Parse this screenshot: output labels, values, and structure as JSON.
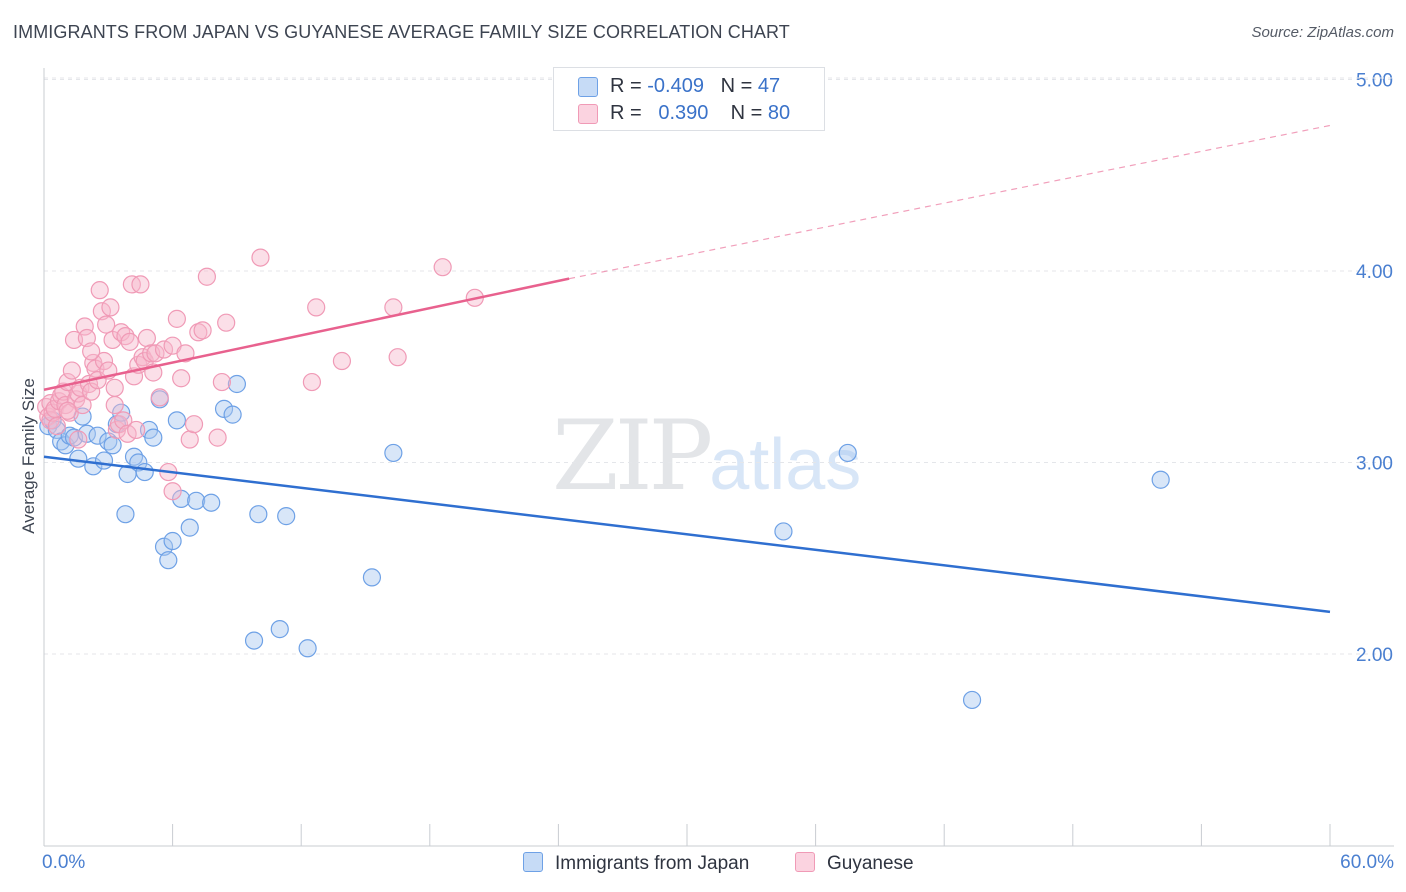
{
  "title": "IMMIGRANTS FROM JAPAN VS GUYANESE AVERAGE FAMILY SIZE CORRELATION CHART",
  "source": "Source: ZipAtlas.com",
  "watermark": {
    "zip": "ZIP",
    "atlas": "atlas"
  },
  "legend_top": {
    "rows": [
      {
        "r_label": "R =",
        "r_value": "-0.409",
        "n_label": "N =",
        "n_value": "47",
        "color": "#a9c8f0"
      },
      {
        "r_label": "R =",
        "r_value": "0.390",
        "n_label": "N =",
        "n_value": "80",
        "color": "#f6b8cc"
      }
    ]
  },
  "chart_data": {
    "type": "scatter",
    "title": "IMMIGRANTS FROM JAPAN VS GUYANESE AVERAGE FAMILY SIZE CORRELATION CHART",
    "xlabel": "",
    "ylabel": "Average Family Size",
    "xlim": [
      0,
      60
    ],
    "ylim": [
      1.0,
      5.2
    ],
    "x_tick_labels": [
      "0.0%",
      "60.0%"
    ],
    "y_ticks": [
      2.0,
      3.0,
      4.0,
      5.0
    ],
    "y_tick_labels": [
      "2.00",
      "3.00",
      "4.00",
      "5.00"
    ],
    "grid": true,
    "legend_position": "bottom",
    "series": [
      {
        "name": "Immigrants from Japan",
        "color": "#6ea1e6",
        "trend_color": "#2f6fd0",
        "trend": {
          "x": [
            0,
            60
          ],
          "y": [
            3.03,
            2.22
          ]
        },
        "points": [
          [
            0.2,
            3.19
          ],
          [
            0.4,
            3.22
          ],
          [
            0.6,
            3.17
          ],
          [
            0.8,
            3.11
          ],
          [
            1.0,
            3.09
          ],
          [
            1.2,
            3.14
          ],
          [
            1.4,
            3.13
          ],
          [
            1.6,
            3.02
          ],
          [
            1.8,
            3.24
          ],
          [
            2.0,
            3.15
          ],
          [
            2.3,
            2.98
          ],
          [
            2.5,
            3.14
          ],
          [
            2.8,
            3.01
          ],
          [
            3.0,
            3.11
          ],
          [
            3.2,
            3.09
          ],
          [
            3.4,
            3.2
          ],
          [
            3.6,
            3.26
          ],
          [
            3.8,
            2.73
          ],
          [
            3.9,
            2.94
          ],
          [
            4.2,
            3.03
          ],
          [
            4.4,
            3.0
          ],
          [
            4.7,
            2.95
          ],
          [
            4.9,
            3.17
          ],
          [
            5.1,
            3.13
          ],
          [
            5.4,
            3.33
          ],
          [
            5.6,
            2.56
          ],
          [
            5.8,
            2.49
          ],
          [
            6.0,
            2.59
          ],
          [
            6.2,
            3.22
          ],
          [
            6.4,
            2.81
          ],
          [
            6.8,
            2.66
          ],
          [
            7.1,
            2.8
          ],
          [
            7.8,
            2.79
          ],
          [
            8.4,
            3.28
          ],
          [
            9.0,
            3.41
          ],
          [
            8.8,
            3.25
          ],
          [
            9.8,
            2.07
          ],
          [
            10.0,
            2.73
          ],
          [
            11.0,
            2.13
          ],
          [
            11.3,
            2.72
          ],
          [
            12.3,
            2.03
          ],
          [
            15.3,
            2.4
          ],
          [
            16.3,
            3.05
          ],
          [
            34.5,
            2.64
          ],
          [
            37.5,
            3.05
          ],
          [
            43.3,
            1.76
          ],
          [
            52.1,
            2.91
          ]
        ]
      },
      {
        "name": "Guyanese",
        "color": "#f09ab6",
        "trend_color": "#e8618e",
        "trend": {
          "x": [
            0,
            24.5
          ],
          "y": [
            3.38,
            3.96
          ]
        },
        "trend_dashed": {
          "x": [
            24.5,
            60
          ],
          "y": [
            3.96,
            4.76
          ]
        },
        "points": [
          [
            0.1,
            3.29
          ],
          [
            0.2,
            3.24
          ],
          [
            0.3,
            3.22
          ],
          [
            0.3,
            3.31
          ],
          [
            0.4,
            3.26
          ],
          [
            0.5,
            3.28
          ],
          [
            0.6,
            3.19
          ],
          [
            0.7,
            3.32
          ],
          [
            0.8,
            3.35
          ],
          [
            0.9,
            3.37
          ],
          [
            1.0,
            3.3
          ],
          [
            1.1,
            3.42
          ],
          [
            1.2,
            3.26
          ],
          [
            1.3,
            3.48
          ],
          [
            1.4,
            3.64
          ],
          [
            1.5,
            3.33
          ],
          [
            1.6,
            3.36
          ],
          [
            1.7,
            3.39
          ],
          [
            1.8,
            3.3
          ],
          [
            1.9,
            3.71
          ],
          [
            2.0,
            3.65
          ],
          [
            2.1,
            3.41
          ],
          [
            2.2,
            3.37
          ],
          [
            2.3,
            3.52
          ],
          [
            2.4,
            3.49
          ],
          [
            2.5,
            3.43
          ],
          [
            2.6,
            3.9
          ],
          [
            2.7,
            3.79
          ],
          [
            2.8,
            3.53
          ],
          [
            2.9,
            3.72
          ],
          [
            3.0,
            3.48
          ],
          [
            3.1,
            3.81
          ],
          [
            3.2,
            3.64
          ],
          [
            3.3,
            3.3
          ],
          [
            3.4,
            3.17
          ],
          [
            3.5,
            3.2
          ],
          [
            3.6,
            3.68
          ],
          [
            3.7,
            3.22
          ],
          [
            3.8,
            3.66
          ],
          [
            3.9,
            3.15
          ],
          [
            4.0,
            3.63
          ],
          [
            4.1,
            3.93
          ],
          [
            4.2,
            3.45
          ],
          [
            4.3,
            3.17
          ],
          [
            4.4,
            3.51
          ],
          [
            4.5,
            3.93
          ],
          [
            4.6,
            3.55
          ],
          [
            4.7,
            3.53
          ],
          [
            4.8,
            3.65
          ],
          [
            5.0,
            3.57
          ],
          [
            5.2,
            3.57
          ],
          [
            5.4,
            3.34
          ],
          [
            5.6,
            3.59
          ],
          [
            5.8,
            2.95
          ],
          [
            6.0,
            2.85
          ],
          [
            6.0,
            3.61
          ],
          [
            6.2,
            3.75
          ],
          [
            6.4,
            3.44
          ],
          [
            6.6,
            3.57
          ],
          [
            6.8,
            3.12
          ],
          [
            7.0,
            3.2
          ],
          [
            7.2,
            3.68
          ],
          [
            7.4,
            3.69
          ],
          [
            7.6,
            3.97
          ],
          [
            8.1,
            3.13
          ],
          [
            8.3,
            3.42
          ],
          [
            8.5,
            3.73
          ],
          [
            10.1,
            4.07
          ],
          [
            12.5,
            3.42
          ],
          [
            12.7,
            3.81
          ],
          [
            13.9,
            3.53
          ],
          [
            16.3,
            3.81
          ],
          [
            16.5,
            3.55
          ],
          [
            18.6,
            4.02
          ],
          [
            20.1,
            3.86
          ],
          [
            1.1,
            3.27
          ],
          [
            1.6,
            3.12
          ],
          [
            2.2,
            3.58
          ],
          [
            3.3,
            3.39
          ],
          [
            5.1,
            3.47
          ]
        ]
      }
    ]
  }
}
